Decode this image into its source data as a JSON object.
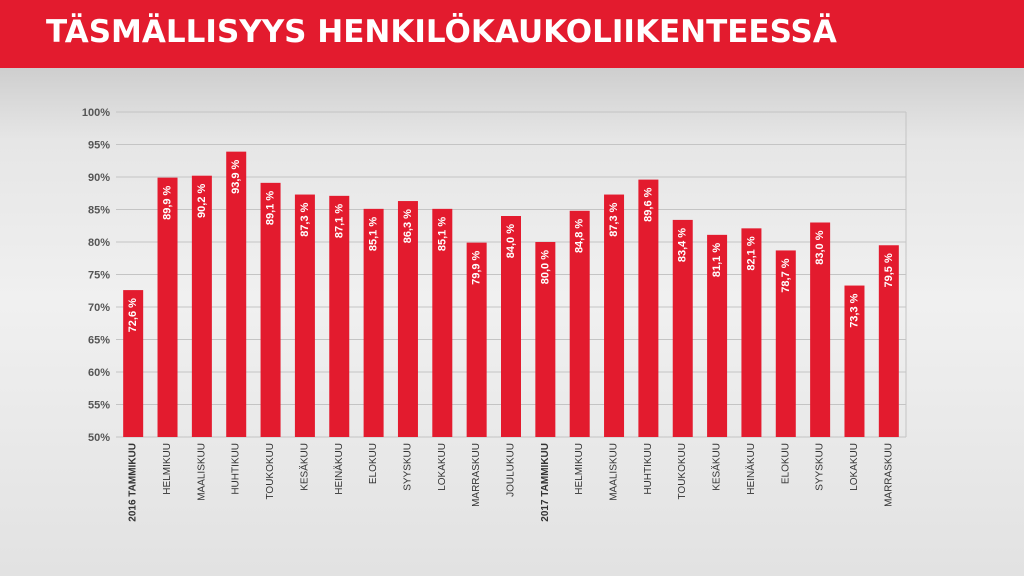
{
  "header": {
    "title": "TÄSMÄLLISYYS HENKILÖKAUKOLIIKENTEESSÄ"
  },
  "colors": {
    "header_bg": "#e31b2e",
    "bar": "#e31b2e",
    "bar_label": "#ffffff",
    "grid": "#c4c4c4",
    "axis_text": "#555555"
  },
  "chart_data": {
    "type": "bar",
    "title": "TÄSMÄLLISYYS HENKILÖKAUKOLIIKENTEESSÄ",
    "xlabel": "",
    "ylabel": "",
    "ylim": [
      50,
      100
    ],
    "yticks": [
      100,
      95,
      90,
      85,
      80,
      75,
      70,
      65,
      60,
      55,
      50
    ],
    "ytick_labels": [
      "100%",
      "95%",
      "90%",
      "85%",
      "80%",
      "75%",
      "70%",
      "65%",
      "60%",
      "55%",
      "50%"
    ],
    "grid": true,
    "categories": [
      "2016 TAMMIKUU",
      "HELMIKUU",
      "MAALISKUU",
      "HUHTIKUU",
      "TOUKOKUU",
      "KESÄKUU",
      "HEINÄKUU",
      "ELOKUU",
      "SYYSKUU",
      "LOKAKUU",
      "MARRASKUU",
      "JOULUKUU",
      "2017 TAMMIKUU",
      "HELMIKUU",
      "MAALISKUU",
      "HUHTIKUU",
      "TOUKOKUU",
      "KESÄKUU",
      "HEINÄKUU",
      "ELOKUU",
      "SYYSKUU",
      "LOKAKUU",
      "MARRASKUU"
    ],
    "values": [
      72.6,
      89.9,
      90.2,
      93.9,
      89.1,
      87.3,
      87.1,
      85.1,
      86.3,
      85.1,
      79.9,
      84.0,
      80.0,
      84.8,
      87.3,
      89.6,
      83.4,
      81.1,
      82.1,
      78.7,
      83.0,
      73.3,
      79.5
    ],
    "data_labels": [
      "72,6 %",
      "89,9 %",
      "90,2 %",
      "93,9 %",
      "89,1 %",
      "87,3 %",
      "87,1 %",
      "85,1 %",
      "86,3 %",
      "85,1 %",
      "79,9 %",
      "84,0 %",
      "80,0 %",
      "84,8 %",
      "87,3 %",
      "89,6 %",
      "83,4 %",
      "81,1 %",
      "82,1 %",
      "78,7 %",
      "83,0 %",
      "73,3 %",
      "79,5 %"
    ],
    "bold_categories": [
      0,
      12
    ]
  }
}
